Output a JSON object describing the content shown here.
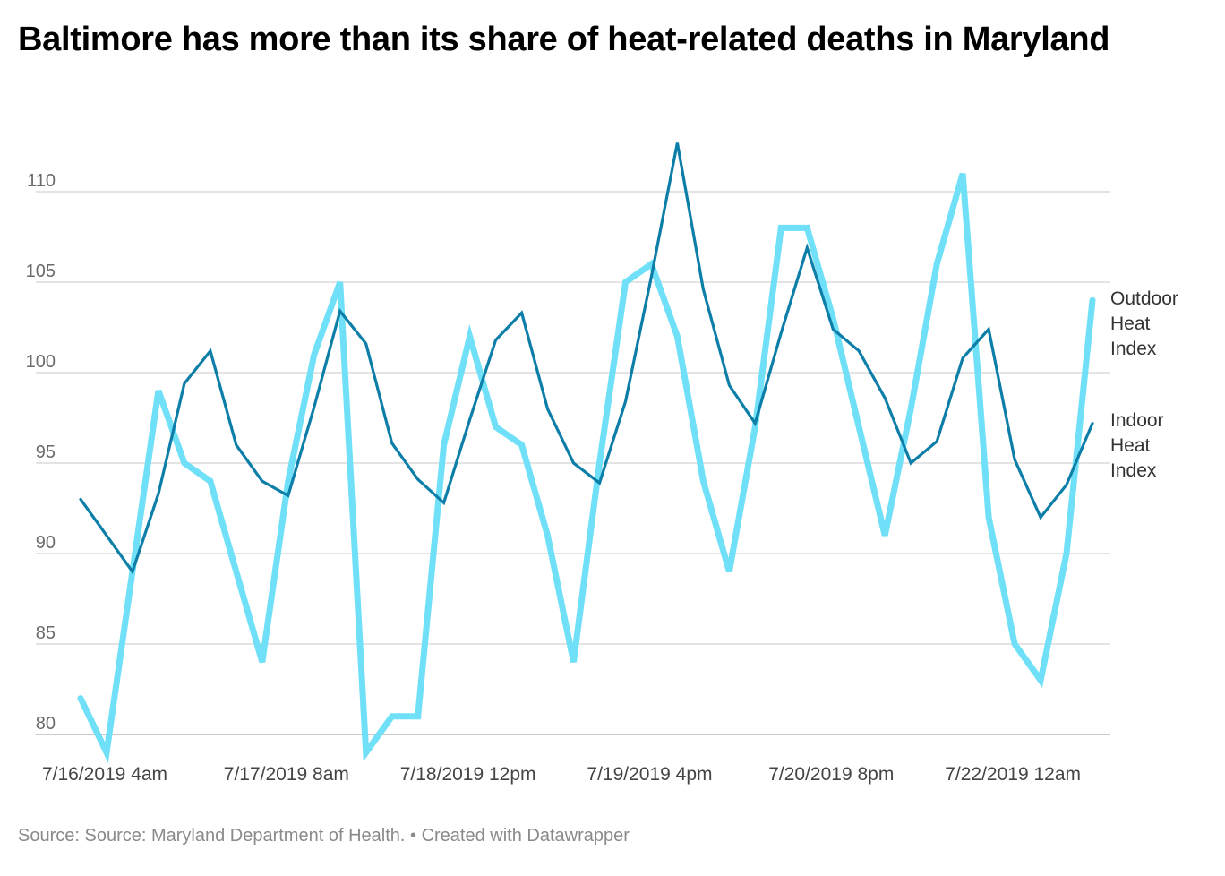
{
  "title": "Baltimore has more than its share of heat-related deaths in Maryland",
  "footer": {
    "source": "Source: Source: Maryland Department of Health.",
    "separator": " • ",
    "credit": "Created with Datawrapper"
  },
  "chart_data": {
    "type": "line",
    "title": "Baltimore has more than its share of heat-related deaths in Maryland",
    "xlabel": "",
    "ylabel": "",
    "x_tick_labels": [
      "7/16/2019 4am",
      "7/17/2019 8am",
      "7/18/2019 12pm",
      "7/19/2019 4pm",
      "7/20/2019 8pm",
      "7/22/2019 12am"
    ],
    "y_ticks": [
      80,
      85,
      90,
      95,
      100,
      105,
      110
    ],
    "ylim": [
      79,
      112.7
    ],
    "grid": true,
    "legend": "direct labels at right end of lines",
    "series": [
      {
        "name": "Outdoor Heat Index",
        "label_lines": [
          "Outdoor",
          "Heat",
          "Index"
        ],
        "color": "#6fe0f8",
        "values": [
          82,
          79,
          89,
          99,
          95,
          94,
          89,
          84,
          94,
          101,
          105,
          79,
          81,
          81,
          96,
          102,
          97,
          96,
          91,
          84,
          95,
          105,
          106,
          102,
          94,
          89,
          97,
          108,
          108,
          103,
          97,
          91,
          98,
          106,
          111,
          92,
          85,
          83,
          90,
          104
        ]
      },
      {
        "name": "Indoor Heat Index",
        "label_lines": [
          "Indoor",
          "Heat",
          "Index"
        ],
        "color": "#0c7ea8",
        "values": [
          93,
          91,
          89,
          93.3,
          99.4,
          101.2,
          96,
          94,
          93.2,
          98.1,
          103.4,
          101.6,
          96.1,
          94.1,
          92.8,
          97.4,
          101.8,
          103.3,
          98,
          95,
          93.9,
          98.4,
          105.3,
          112.7,
          104.6,
          99.3,
          97.2,
          102.2,
          106.9,
          102.4,
          101.2,
          98.6,
          95,
          96.2,
          100.8,
          102.4,
          95.2,
          92,
          93.8,
          97.2
        ]
      }
    ]
  }
}
